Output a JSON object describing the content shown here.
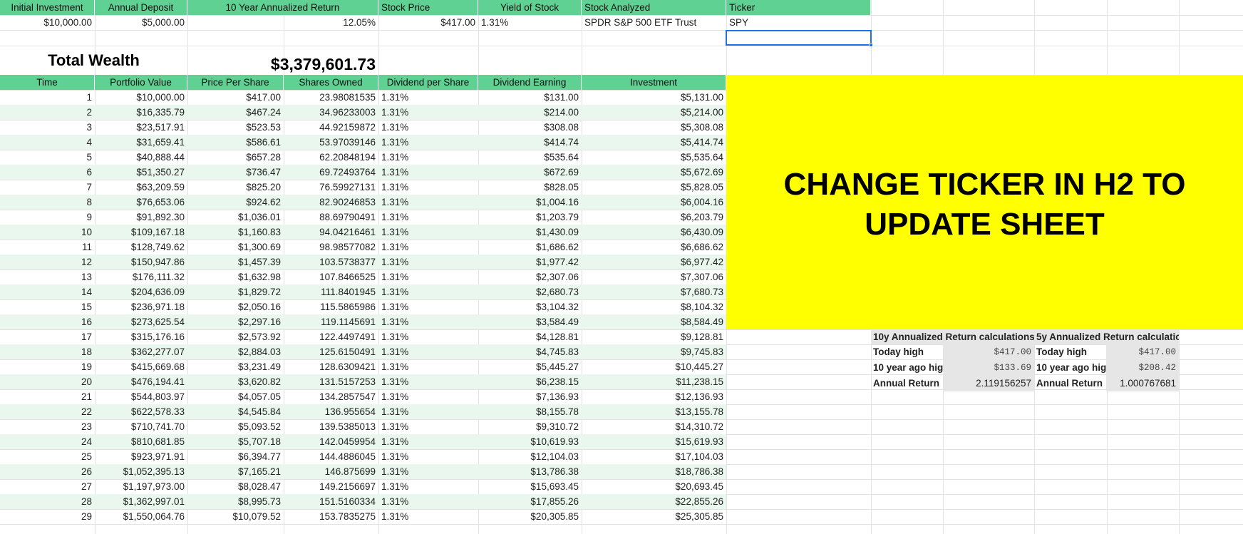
{
  "colors": {
    "header_bg": "#5fd193",
    "band_bg": "#e9f7ee",
    "notice_bg": "#ffff00",
    "calc_bg": "#e6e6e6",
    "selection": "#1a73e8"
  },
  "top_headers": [
    "Initial Investment",
    "Annual Deposit",
    "10 Year Annualized Return",
    "Stock Price",
    "Yield of Stock",
    "Stock Analyzed",
    "Ticker"
  ],
  "inputs": {
    "initial_investment": "$10,000.00",
    "annual_deposit": "$5,000.00",
    "annualized_return": "12.05%",
    "stock_price": "$417.00",
    "yield": "1.31%",
    "stock_analyzed": "SPDR S&P 500 ETF Trust",
    "ticker": "SPY"
  },
  "total_wealth": {
    "label": "Total Wealth",
    "value": "$3,379,601.73"
  },
  "table": {
    "headers": [
      "Time",
      "Portfolio Value",
      "Price Per Share",
      "Shares Owned",
      "Dividend per Share",
      "Dividend Earning",
      "Investment"
    ],
    "rows": [
      [
        "1",
        "$10,000.00",
        "$417.00",
        "23.98081535",
        "1.31%",
        "$131.00",
        "$5,131.00"
      ],
      [
        "2",
        "$16,335.79",
        "$467.24",
        "34.96233003",
        "1.31%",
        "$214.00",
        "$5,214.00"
      ],
      [
        "3",
        "$23,517.91",
        "$523.53",
        "44.92159872",
        "1.31%",
        "$308.08",
        "$5,308.08"
      ],
      [
        "4",
        "$31,659.41",
        "$586.61",
        "53.97039146",
        "1.31%",
        "$414.74",
        "$5,414.74"
      ],
      [
        "5",
        "$40,888.44",
        "$657.28",
        "62.20848194",
        "1.31%",
        "$535.64",
        "$5,535.64"
      ],
      [
        "6",
        "$51,350.27",
        "$736.47",
        "69.72493764",
        "1.31%",
        "$672.69",
        "$5,672.69"
      ],
      [
        "7",
        "$63,209.59",
        "$825.20",
        "76.59927131",
        "1.31%",
        "$828.05",
        "$5,828.05"
      ],
      [
        "8",
        "$76,653.06",
        "$924.62",
        "82.90246853",
        "1.31%",
        "$1,004.16",
        "$6,004.16"
      ],
      [
        "9",
        "$91,892.30",
        "$1,036.01",
        "88.69790491",
        "1.31%",
        "$1,203.79",
        "$6,203.79"
      ],
      [
        "10",
        "$109,167.18",
        "$1,160.83",
        "94.04216461",
        "1.31%",
        "$1,430.09",
        "$6,430.09"
      ],
      [
        "11",
        "$128,749.62",
        "$1,300.69",
        "98.98577082",
        "1.31%",
        "$1,686.62",
        "$6,686.62"
      ],
      [
        "12",
        "$150,947.86",
        "$1,457.39",
        "103.5738377",
        "1.31%",
        "$1,977.42",
        "$6,977.42"
      ],
      [
        "13",
        "$176,111.32",
        "$1,632.98",
        "107.8466525",
        "1.31%",
        "$2,307.06",
        "$7,307.06"
      ],
      [
        "14",
        "$204,636.09",
        "$1,829.72",
        "111.8401945",
        "1.31%",
        "$2,680.73",
        "$7,680.73"
      ],
      [
        "15",
        "$236,971.18",
        "$2,050.16",
        "115.5865986",
        "1.31%",
        "$3,104.32",
        "$8,104.32"
      ],
      [
        "16",
        "$273,625.54",
        "$2,297.16",
        "119.1145691",
        "1.31%",
        "$3,584.49",
        "$8,584.49"
      ],
      [
        "17",
        "$315,176.16",
        "$2,573.92",
        "122.4497491",
        "1.31%",
        "$4,128.81",
        "$9,128.81"
      ],
      [
        "18",
        "$362,277.07",
        "$2,884.03",
        "125.6150491",
        "1.31%",
        "$4,745.83",
        "$9,745.83"
      ],
      [
        "19",
        "$415,669.68",
        "$3,231.49",
        "128.6309421",
        "1.31%",
        "$5,445.27",
        "$10,445.27"
      ],
      [
        "20",
        "$476,194.41",
        "$3,620.82",
        "131.5157253",
        "1.31%",
        "$6,238.15",
        "$11,238.15"
      ],
      [
        "21",
        "$544,803.97",
        "$4,057.05",
        "134.2857547",
        "1.31%",
        "$7,136.93",
        "$12,136.93"
      ],
      [
        "22",
        "$622,578.33",
        "$4,545.84",
        "136.955654",
        "1.31%",
        "$8,155.78",
        "$13,155.78"
      ],
      [
        "23",
        "$710,741.70",
        "$5,093.52",
        "139.5385013",
        "1.31%",
        "$9,310.72",
        "$14,310.72"
      ],
      [
        "24",
        "$810,681.85",
        "$5,707.18",
        "142.0459954",
        "1.31%",
        "$10,619.93",
        "$15,619.93"
      ],
      [
        "25",
        "$923,971.91",
        "$6,394.77",
        "144.4886045",
        "1.31%",
        "$12,104.03",
        "$17,104.03"
      ],
      [
        "26",
        "$1,052,395.13",
        "$7,165.21",
        "146.875699",
        "1.31%",
        "$13,786.38",
        "$18,786.38"
      ],
      [
        "27",
        "$1,197,973.00",
        "$8,028.47",
        "149.2156697",
        "1.31%",
        "$15,693.45",
        "$20,693.45"
      ],
      [
        "28",
        "$1,362,997.01",
        "$8,995.73",
        "151.5160334",
        "1.31%",
        "$17,855.26",
        "$22,855.26"
      ],
      [
        "29",
        "$1,550,064.76",
        "$10,079.52",
        "153.7835275",
        "1.31%",
        "$20,305.85",
        "$25,305.85"
      ]
    ]
  },
  "notice": {
    "line1": "CHANGE TICKER IN H2 TO",
    "line2": "UPDATE SHEET"
  },
  "calc_10y": {
    "title": "10y Annualized Return calculations",
    "rows": [
      [
        "Today high",
        "$417.00"
      ],
      [
        "10 year ago hig",
        "$133.69"
      ],
      [
        "Annual Return",
        "2.119156257"
      ]
    ]
  },
  "calc_5y": {
    "title": "5y Annualized Return calculatic",
    "rows": [
      [
        "Today high",
        "$417.00"
      ],
      [
        "10 year ago hig",
        "$208.42"
      ],
      [
        "Annual Return",
        "1.000767681"
      ]
    ]
  }
}
